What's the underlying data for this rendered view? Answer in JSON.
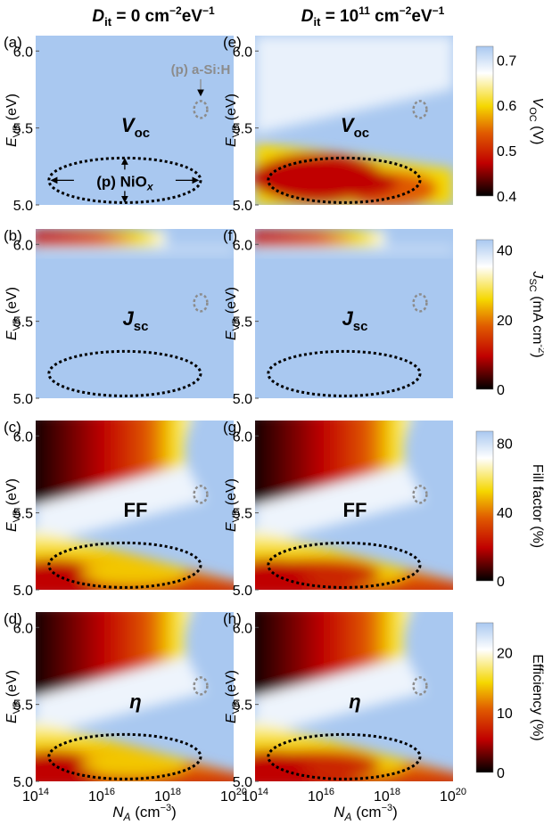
{
  "colors": {
    "high": "#a9c8f0",
    "white": "#ffffff",
    "yellow": "#f5d700",
    "orange": "#e05a00",
    "red": "#c00000",
    "dark": "#000000",
    "annotation_gray": "#8c8c8c"
  },
  "chart_data": {
    "type": "heatmap",
    "columns": [
      {
        "label": "D",
        "sub": "it",
        "value_prefix": "= 0 cm",
        "exp1": "−2",
        "mid": "eV",
        "exp2": "−1"
      },
      {
        "label": "D",
        "sub": "it",
        "value_prefix": "= 10",
        "value_exp": "11",
        "value_suffix": " cm",
        "exp1": "−2",
        "mid": "eV",
        "exp2": "−1"
      }
    ],
    "xaxis": {
      "label": "N",
      "label_sub": "A",
      "unit": "(cm",
      "unit_exp": "−3",
      "unit_close": ")",
      "scale": "log",
      "range": [
        14,
        20
      ],
      "ticks": [
        {
          "base": "10",
          "exp": "14"
        },
        {
          "base": "10",
          "exp": "16"
        },
        {
          "base": "10",
          "exp": "18"
        },
        {
          "base": "10",
          "exp": "20"
        }
      ]
    },
    "yaxis": {
      "label": "E",
      "label_sub": "VB",
      "unit": "(eV)",
      "range": [
        5.0,
        6.1
      ],
      "ticks": [
        "5.0",
        "5.5",
        "6.0"
      ]
    },
    "annotations": {
      "nio_label": "(p) NiO",
      "nio_sub": "x",
      "asi_label": "(p) a-Si:H",
      "nio_region": {
        "x_center": 16.7,
        "y_center": 5.16,
        "x_halfwidth": 2.3,
        "y_halfwidth": 0.145
      },
      "asi_region": {
        "x_center": 19.0,
        "y_center": 5.62,
        "x_halfwidth": 0.2,
        "y_halfwidth": 0.055
      }
    },
    "rows": [
      {
        "key": "voc",
        "metric_label": "V",
        "metric_sub": "oc",
        "metric_italic": true,
        "cbar_title": "V",
        "cbar_sub": "OC",
        "cbar_unit": " (V)",
        "cbar_range": [
          0.4,
          0.73
        ],
        "cbar_ticks": [
          "0.4",
          "0.5",
          "0.6",
          "0.7"
        ],
        "cbar_tick_values": [
          0.4,
          0.5,
          0.6,
          0.7
        ],
        "panels": [
          "(a)",
          "(e)"
        ]
      },
      {
        "key": "jsc",
        "metric_label": "J",
        "metric_sub": "sc",
        "metric_italic": true,
        "cbar_title": "J",
        "cbar_sub": "SC",
        "cbar_unit": " (mA cm",
        "cbar_unit_exp": "-2",
        "cbar_unit_close": ")",
        "cbar_range": [
          0,
          43
        ],
        "cbar_ticks": [
          "0",
          "20",
          "40"
        ],
        "cbar_tick_values": [
          0,
          20,
          40
        ],
        "panels": [
          "(b)",
          "(f)"
        ]
      },
      {
        "key": "ff",
        "metric_label": "FF",
        "metric_sub": "",
        "metric_italic": false,
        "cbar_title": "Fill factor (%)",
        "cbar_sub": "",
        "cbar_unit": "",
        "cbar_range": [
          0,
          87
        ],
        "cbar_ticks": [
          "0",
          "40",
          "80"
        ],
        "cbar_tick_values": [
          0,
          40,
          80
        ],
        "panels": [
          "(c)",
          "(g)"
        ]
      },
      {
        "key": "eta",
        "metric_label": "η",
        "metric_sub": "",
        "metric_italic": true,
        "cbar_title": "Efficiency (%)",
        "cbar_sub": "",
        "cbar_unit": "",
        "cbar_range": [
          0,
          25
        ],
        "cbar_ticks": [
          "0",
          "10",
          "20"
        ],
        "cbar_tick_values": [
          0,
          10,
          20
        ],
        "panels": [
          "(d)",
          "(h)"
        ]
      }
    ]
  }
}
